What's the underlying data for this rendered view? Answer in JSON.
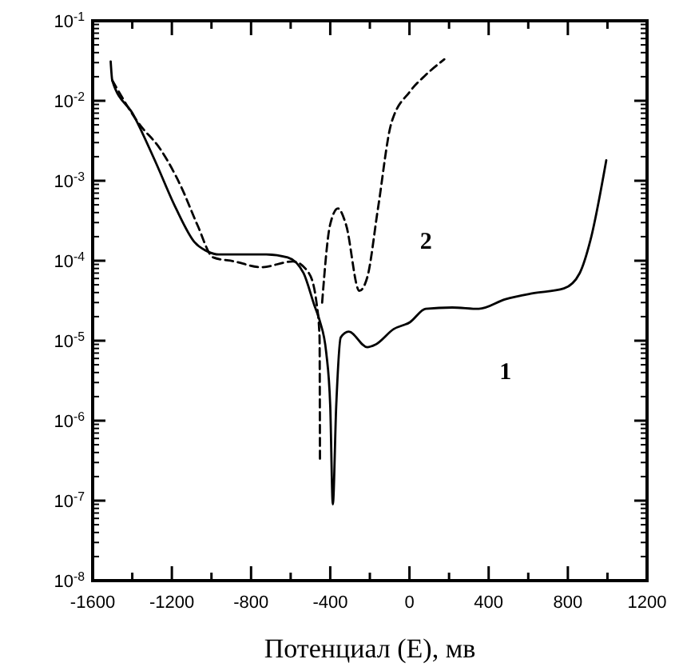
{
  "chart_data": {
    "type": "line",
    "xlabel": "Потенциал (E), мв",
    "log": "y",
    "grid": false,
    "xlim": [
      -1600,
      1200
    ],
    "ylim": [
      1e-08,
      0.1
    ],
    "xticks": [
      -1600,
      {
        "value": -1400,
        "label": null
      },
      -1200,
      {
        "value": -1000,
        "label": null
      },
      -800,
      {
        "value": -600,
        "label": null
      },
      -400,
      {
        "value": -200,
        "label": null
      },
      0,
      {
        "value": 200,
        "label": null
      },
      400,
      {
        "value": 600,
        "label": null
      },
      800,
      {
        "value": 1000,
        "label": null
      },
      1200
    ],
    "yticks": [
      {
        "value": 1e-08,
        "label": "10$^{-8}$"
      },
      {
        "value": 1e-07,
        "label": "10$^{-7}$"
      },
      {
        "value": 1e-06,
        "label": "10$^{-6}$"
      },
      {
        "value": 1e-05,
        "label": "10$^{-5}$"
      },
      {
        "value": 0.0001,
        "label": "10$^{-4}$"
      },
      {
        "value": 0.001,
        "label": "10$^{-3}$"
      },
      {
        "value": 0.01,
        "label": "10$^{-2}$"
      },
      {
        "value": 0.1,
        "label": "10$^{-1}$"
      }
    ],
    "series": [
      {
        "name": "1",
        "color": "#000000",
        "line_style": "solid",
        "x": [
          -1509,
          -1501,
          -1393,
          -1286,
          -1179,
          -1085,
          -1018,
          -964,
          -723,
          -615,
          -535,
          -481,
          -454,
          -420,
          -400,
          -387,
          -370,
          -347,
          -307,
          -213,
          -173,
          -79,
          2,
          82,
          216,
          350,
          485,
          619,
          780,
          860,
          914,
          994
        ],
        "values": [
          0.031,
          0.018,
          0.0066,
          0.0018,
          0.00045,
          0.00017,
          0.00013,
          0.00012,
          0.00012,
          0.00011,
          7e-05,
          2.8e-05,
          1.8e-05,
          7e-06,
          1.5e-06,
          9e-08,
          1.5e-06,
          1.1e-05,
          1.3e-05,
          8.3e-06,
          8.9e-06,
          1.4e-05,
          1.7e-05,
          2.5e-05,
          2.6e-05,
          2.5e-05,
          3.3e-05,
          3.9e-05,
          4.5e-05,
          7e-05,
          0.00018,
          0.0018
        ]
      },
      {
        "name": "2",
        "color": "#000000",
        "line_style": "dashed",
        "x": [
          -1501,
          -1367,
          -1259,
          -1152,
          -1071,
          -991,
          -884,
          -749,
          -588,
          -508,
          -468,
          -454,
          -452,
          -447,
          -441,
          -401,
          -361,
          -320,
          -253,
          -213,
          -159,
          -92,
          2,
          82,
          176
        ],
        "values": [
          0.018,
          0.0052,
          0.0025,
          0.00083,
          0.00028,
          0.00011,
          9.8e-05,
          8.3e-05,
          9.8e-05,
          7e-05,
          2.8e-05,
          1.1e-05,
          3.3e-07,
          null,
          3e-05,
          0.00028,
          0.00045,
          0.00028,
          4.2e-05,
          6.2e-05,
          0.00045,
          0.0052,
          0.013,
          0.021,
          0.033
        ]
      }
    ]
  }
}
